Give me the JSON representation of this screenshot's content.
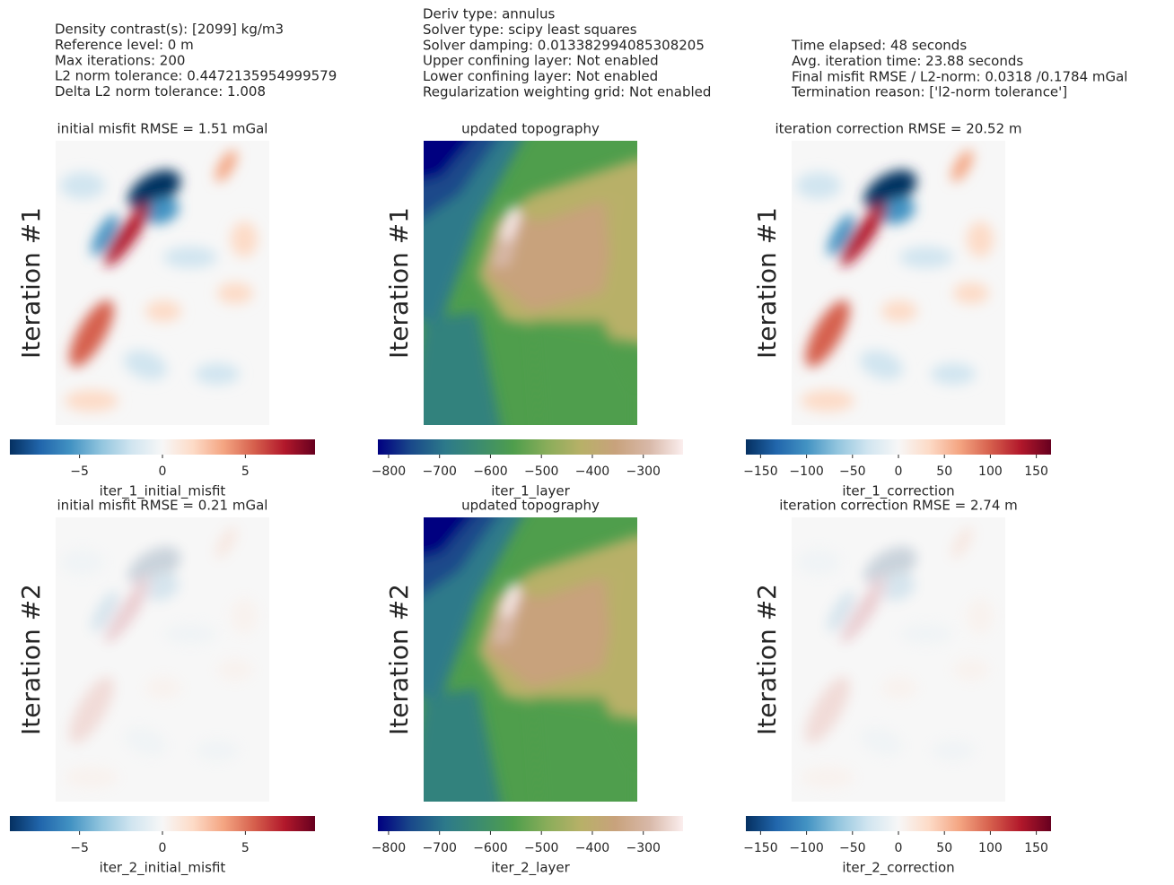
{
  "info_blocks": [
    [
      "Density contrast(s): [2099] kg/m3",
      "Reference level: 0 m",
      "Max iterations: 200",
      "L2 norm tolerance: 0.4472135954999579",
      "Delta L2 norm tolerance: 1.008"
    ],
    [
      "Deriv type: annulus",
      "Solver type: scipy least squares",
      "Solver damping: 0.013382994085308205",
      "Upper confining layer: Not enabled",
      "Lower confining layer: Not enabled",
      "Regularization weighting grid: Not enabled"
    ],
    [
      "Time elapsed: 48 seconds",
      "Avg. iteration time: 23.88 seconds",
      "Final misfit RMSE / L2-norm: 0.0318 /0.1784 mGal",
      "Termination reason: ['l2-norm tolerance']"
    ]
  ],
  "chart_data": [
    {
      "type": "heatmap",
      "title": "initial misfit RMSE = 1.51 mGal",
      "ylabel": "Iteration #1",
      "xlabel": "iter_1_initial_misfit",
      "xlim": [
        -9.2,
        9.2
      ],
      "xticks": [
        {
          "value": -5,
          "label": "−5"
        },
        0,
        5
      ],
      "colormap": [
        "#053061",
        "#2166ac",
        "#4393c3",
        "#92c5de",
        "#d1e5f0",
        "#f7f7f7",
        "#fddbc7",
        "#f4a582",
        "#d6604d",
        "#b2182b",
        "#67001f"
      ]
    },
    {
      "type": "heatmap",
      "title": "updated topography",
      "ylabel": "Iteration #1",
      "xlabel": "iter_1_layer",
      "xlim": [
        -821,
        -222
      ],
      "xticks": [
        {
          "value": -800,
          "label": "−800"
        },
        {
          "value": -700,
          "label": "−700"
        },
        {
          "value": -600,
          "label": "−600"
        },
        {
          "value": -500,
          "label": "−500"
        },
        {
          "value": -400,
          "label": "−400"
        },
        {
          "value": -300,
          "label": "−300"
        }
      ],
      "colormap": [
        "#000080",
        "#1a4a8a",
        "#2d7a8a",
        "#3c8c6e",
        "#4f9e4c",
        "#8aad5a",
        "#b8b068",
        "#c8a27c",
        "#d8b8a8",
        "#fbeeee"
      ]
    },
    {
      "type": "heatmap",
      "title": "iteration correction RMSE = 20.52 m",
      "ylabel": "Iteration #1",
      "xlabel": "iter_1_correction",
      "xlim": [
        -166,
        166
      ],
      "xticks": [
        {
          "value": -150,
          "label": "−150"
        },
        {
          "value": -100,
          "label": "−100"
        },
        {
          "value": -50,
          "label": "−50"
        },
        0,
        50,
        100,
        150
      ],
      "colormap": [
        "#053061",
        "#2166ac",
        "#4393c3",
        "#92c5de",
        "#d1e5f0",
        "#f7f7f7",
        "#fddbc7",
        "#f4a582",
        "#d6604d",
        "#b2182b",
        "#67001f"
      ]
    },
    {
      "type": "heatmap",
      "title": "initial misfit RMSE = 0.21 mGal",
      "ylabel": "Iteration #2",
      "xlabel": "iter_2_initial_misfit",
      "xlim": [
        -9.2,
        9.2
      ],
      "xticks": [
        {
          "value": -5,
          "label": "−5"
        },
        0,
        5
      ],
      "colormap": [
        "#053061",
        "#2166ac",
        "#4393c3",
        "#92c5de",
        "#d1e5f0",
        "#f7f7f7",
        "#fddbc7",
        "#f4a582",
        "#d6604d",
        "#b2182b",
        "#67001f"
      ]
    },
    {
      "type": "heatmap",
      "title": "updated topography",
      "ylabel": "Iteration #2",
      "xlabel": "iter_2_layer",
      "xlim": [
        -821,
        -222
      ],
      "xticks": [
        {
          "value": -800,
          "label": "−800"
        },
        {
          "value": -700,
          "label": "−700"
        },
        {
          "value": -600,
          "label": "−600"
        },
        {
          "value": -500,
          "label": "−500"
        },
        {
          "value": -400,
          "label": "−400"
        },
        {
          "value": -300,
          "label": "−300"
        }
      ],
      "colormap": [
        "#000080",
        "#1a4a8a",
        "#2d7a8a",
        "#3c8c6e",
        "#4f9e4c",
        "#8aad5a",
        "#b8b068",
        "#c8a27c",
        "#d8b8a8",
        "#fbeeee"
      ]
    },
    {
      "type": "heatmap",
      "title": "iteration correction RMSE = 2.74 m",
      "ylabel": "Iteration #2",
      "xlabel": "iter_2_correction",
      "xlim": [
        -166,
        166
      ],
      "xticks": [
        {
          "value": -150,
          "label": "−150"
        },
        {
          "value": -100,
          "label": "−100"
        },
        {
          "value": -50,
          "label": "−50"
        },
        0,
        50,
        100,
        150
      ],
      "colormap": [
        "#053061",
        "#2166ac",
        "#4393c3",
        "#92c5de",
        "#d1e5f0",
        "#f7f7f7",
        "#fddbc7",
        "#f4a582",
        "#d6604d",
        "#b2182b",
        "#67001f"
      ]
    }
  ]
}
